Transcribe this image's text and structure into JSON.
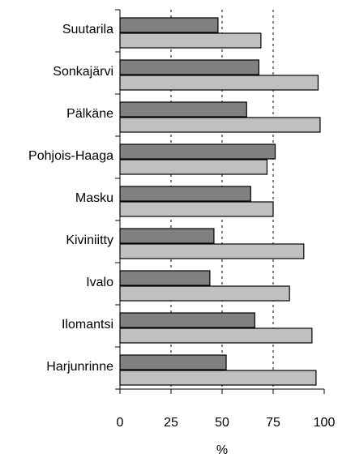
{
  "chart_data": {
    "type": "barh",
    "categories": [
      "Suutarila",
      "Sonkajärvi",
      "Pälkäne",
      "Pohjois-Haaga",
      "Masku",
      "Kiviniitty",
      "Ivalo",
      "Ilomantsi",
      "Harjunrinne"
    ],
    "series": [
      {
        "color": "#808080",
        "values": [
          48,
          68,
          62,
          76,
          64,
          46,
          44,
          66,
          52
        ]
      },
      {
        "color": "#c0c0c0",
        "values": [
          69,
          97,
          98,
          72,
          75,
          90,
          83,
          94,
          96
        ]
      }
    ],
    "xlabel": "%",
    "xlim": [
      0,
      100
    ],
    "xticks": [
      0,
      25,
      50,
      75,
      100
    ],
    "grid": true
  }
}
